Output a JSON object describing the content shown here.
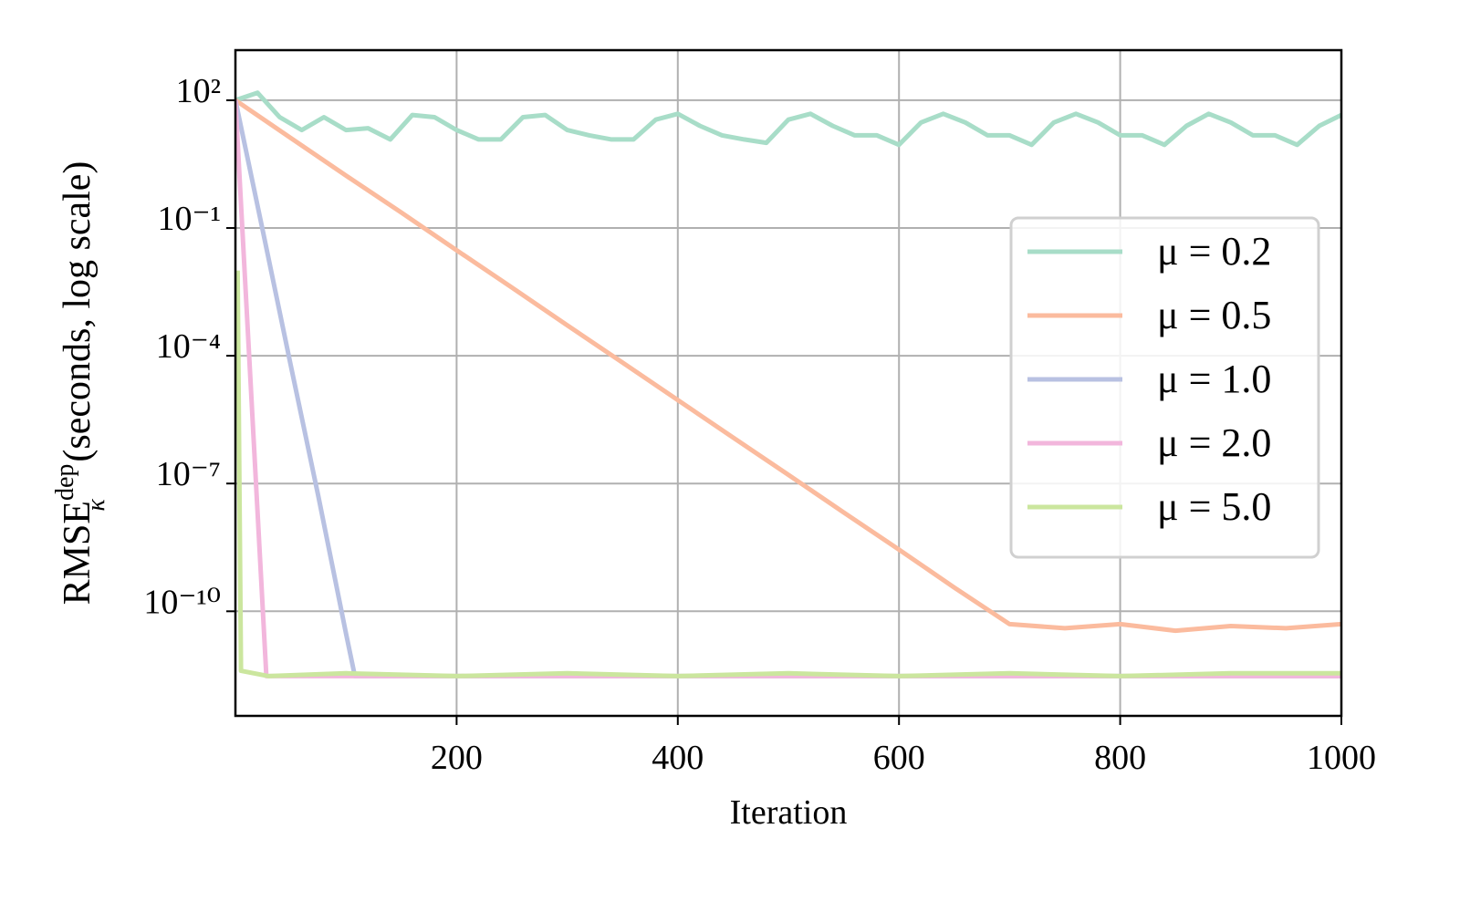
{
  "chart_data": {
    "type": "line",
    "xlabel": "Iteration",
    "ylabel": {
      "main": "RMSE",
      "sub": "κ",
      "sup": "dep",
      "rest": " (seconds, log scale)"
    },
    "yscale": "log",
    "grid": true,
    "legend": "right",
    "xlim": [
      0,
      1000
    ],
    "xticks": [
      200,
      400,
      600,
      800,
      1000
    ],
    "ylim": [
      3.5e-13,
      1500
    ],
    "yticks": [
      {
        "value": 100,
        "label": "10²"
      },
      {
        "value": 0.1,
        "label": "10⁻¹"
      },
      {
        "value": 0.0001,
        "label": "10⁻⁴"
      },
      {
        "value": 1e-07,
        "label": "10⁻⁷"
      },
      {
        "value": 1e-10,
        "label": "10⁻¹⁰"
      }
    ],
    "series": [
      {
        "name": "μ = 0.2",
        "color": "#a8ddc8",
        "x": [
          0,
          20,
          40,
          60,
          80,
          100,
          120,
          140,
          160,
          180,
          200,
          220,
          240,
          260,
          280,
          300,
          320,
          340,
          360,
          380,
          400,
          420,
          440,
          460,
          480,
          500,
          520,
          540,
          560,
          580,
          600,
          620,
          640,
          660,
          680,
          700,
          720,
          740,
          760,
          780,
          800,
          820,
          840,
          860,
          880,
          900,
          920,
          940,
          960,
          980,
          1000
        ],
        "values": [
          100,
          150,
          40,
          20,
          40,
          20,
          22,
          12,
          45,
          40,
          20,
          12,
          12,
          40,
          45,
          20,
          15,
          12,
          12,
          35,
          48,
          25,
          15,
          12,
          10,
          35,
          48,
          25,
          15,
          15,
          9,
          30,
          48,
          30,
          15,
          15,
          9,
          30,
          48,
          30,
          15,
          15,
          9,
          25,
          48,
          30,
          15,
          15,
          9,
          25,
          45
        ]
      },
      {
        "name": "μ = 0.5",
        "color": "#fbbb9e",
        "x": [
          0,
          50,
          100,
          150,
          200,
          250,
          300,
          350,
          400,
          450,
          500,
          550,
          600,
          650,
          700,
          750,
          800,
          850,
          900,
          950,
          1000
        ],
        "values": [
          100,
          13,
          1.7,
          0.23,
          0.03,
          0.004,
          0.00052,
          6.9e-05,
          9.1e-06,
          1.2e-06,
          1.6e-07,
          2.1e-08,
          2.8e-09,
          3.6e-10,
          5e-11,
          4e-11,
          5e-11,
          3.5e-11,
          4.5e-11,
          4e-11,
          5e-11
        ]
      },
      {
        "name": "μ = 1.0",
        "color": "#b8c1e2",
        "x": [
          0,
          25,
          50,
          75,
          100,
          108,
          300,
          500,
          700,
          1000
        ],
        "values": [
          100,
          0.08,
          6e-05,
          5e-08,
          3e-11,
          3e-12,
          3e-12,
          3e-12,
          3e-12,
          3e-12
        ]
      },
      {
        "name": "μ = 2.0",
        "color": "#f2b6dc",
        "x": [
          0,
          28,
          300,
          600,
          1000
        ],
        "values": [
          100,
          3e-12,
          3e-12,
          3e-12,
          3e-12
        ]
      },
      {
        "name": "μ = 5.0",
        "color": "#cbe69e",
        "x": [
          2,
          5,
          30,
          100,
          200,
          300,
          400,
          500,
          600,
          700,
          800,
          900,
          1000
        ],
        "values": [
          0.01,
          4e-12,
          3e-12,
          3.5e-12,
          3e-12,
          3.5e-12,
          3e-12,
          3.5e-12,
          3e-12,
          3.5e-12,
          3e-12,
          3.5e-12,
          3.5e-12
        ]
      }
    ]
  }
}
